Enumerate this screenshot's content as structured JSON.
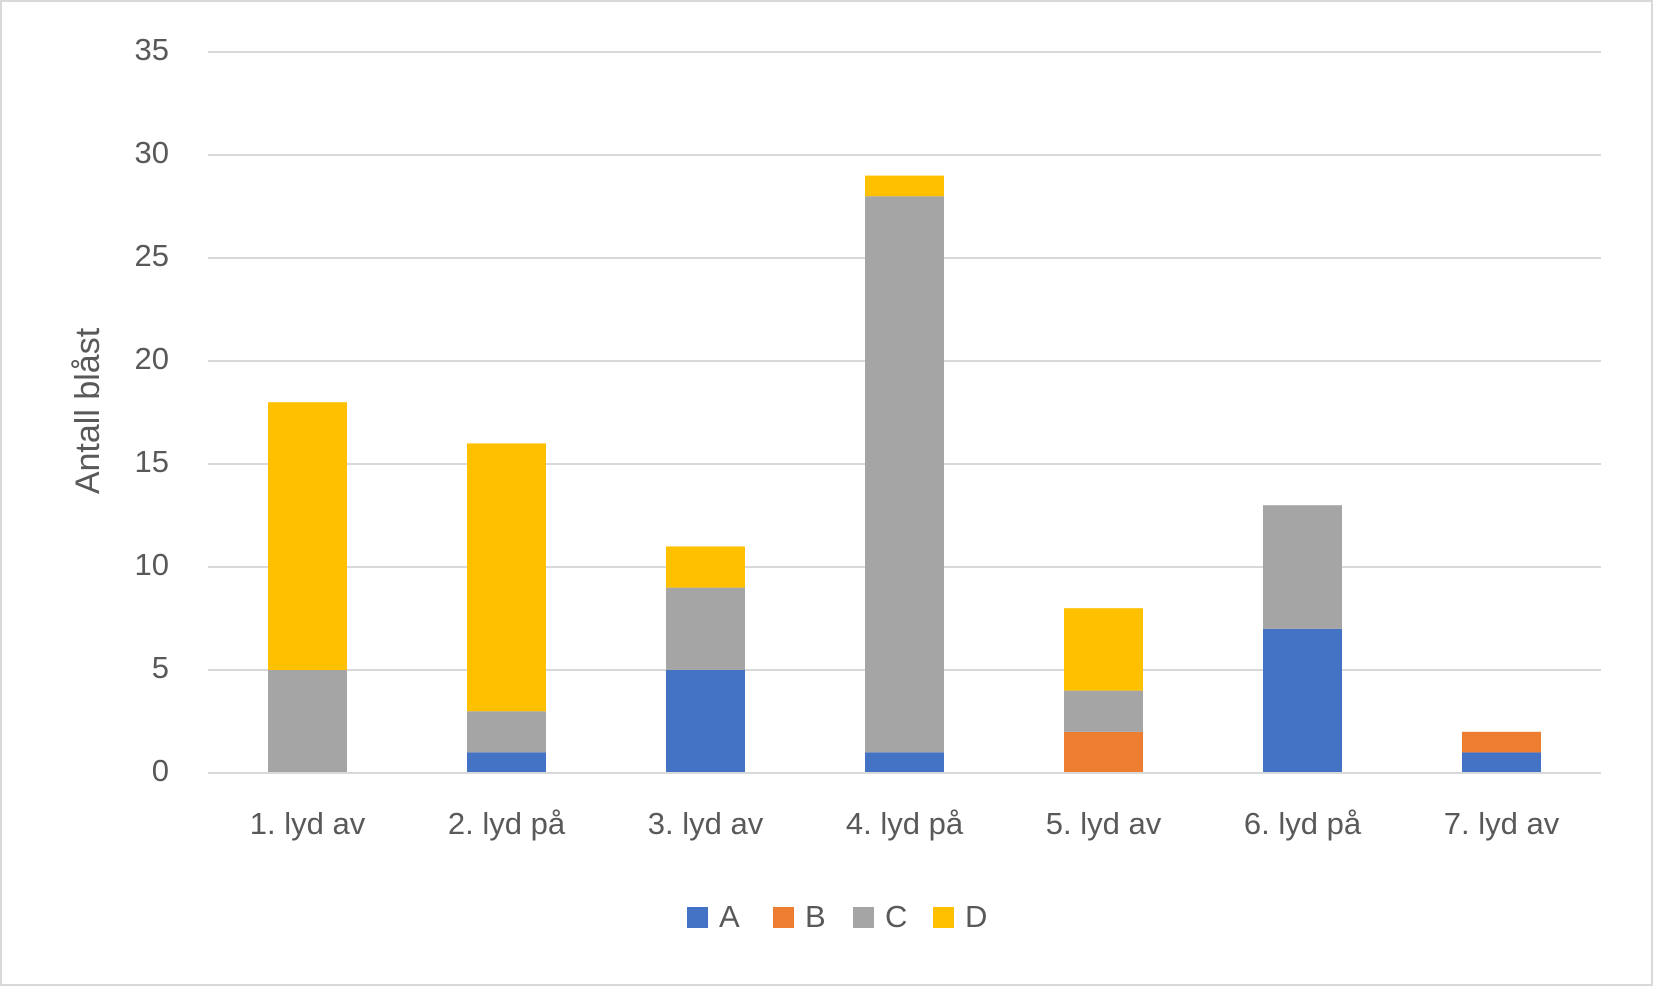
{
  "chart_data": {
    "type": "stacked-bar",
    "y_label": "Antall blåst",
    "categories": [
      "1. lyd av",
      "2. lyd på",
      "3. lyd av",
      "4. lyd på",
      "5. lyd av",
      "6. lyd på",
      "7. lyd av"
    ],
    "series": [
      {
        "name": "A",
        "color": "#4472c4",
        "values": [
          0,
          1,
          5,
          1,
          0,
          7,
          1
        ]
      },
      {
        "name": "B",
        "color": "#ed7d31",
        "values": [
          0,
          0,
          0,
          0,
          2,
          0,
          1
        ]
      },
      {
        "name": "C",
        "color": "#a5a5a5",
        "values": [
          5,
          2,
          4,
          27,
          2,
          6,
          0
        ]
      },
      {
        "name": "D",
        "color": "#ffc000",
        "values": [
          13,
          13,
          2,
          1,
          4,
          0,
          0
        ]
      }
    ],
    "ylim": [
      0,
      35
    ],
    "yticks": [
      0,
      5,
      10,
      15,
      20,
      25,
      30,
      35
    ],
    "grid": true,
    "legend": "bottom"
  }
}
